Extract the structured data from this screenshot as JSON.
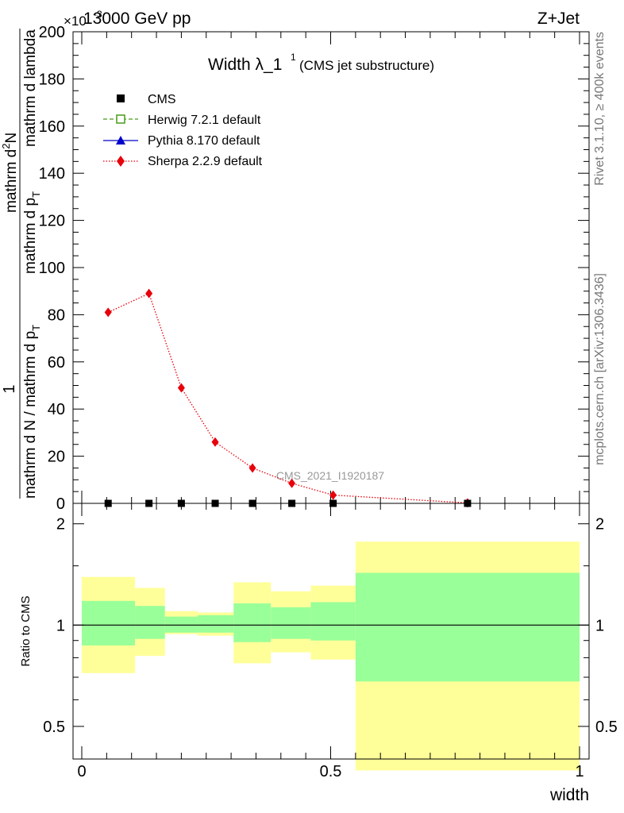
{
  "header": {
    "energy_label": "13000 GeV pp",
    "process_label": "Z+Jet",
    "y_exponent_label": "×10",
    "y_exponent": "-3"
  },
  "side_labels": {
    "rivet": "Rivet 3.1.10, ≥ 400k events",
    "mcplots": "mcplots.cern.ch [arXiv:1306.3436]"
  },
  "watermark": "CMS_2021_I1920187",
  "chart_data": [
    {
      "type": "line",
      "title_main": "Width λ_1",
      "title_sup": "1",
      "title_note": "(CMS jet substructure)",
      "ylabel_parts": {
        "one": "1",
        "denom": "mathrm d N / mathrm d p",
        "denom_sub": "T",
        "denom2": "mathrm d p",
        "denom2_sub": "T",
        "tail": "mathrm d lambda",
        "numer": "mathrm d",
        "numer_sup": "2",
        "numer_tail": "N"
      },
      "xlabel": "width",
      "xlim": [
        0,
        1
      ],
      "ylim": [
        0,
        200
      ],
      "y_ticks": [
        0,
        20,
        40,
        60,
        80,
        100,
        120,
        140,
        160,
        180,
        200
      ],
      "legend_position": "top-left",
      "legend": [
        {
          "name": "CMS",
          "marker": "square-filled",
          "color": "#000000",
          "line": "none"
        },
        {
          "name": "Herwig 7.2.1 default",
          "marker": "square-open",
          "color": "#4a9a1a",
          "line": "dashed"
        },
        {
          "name": "Pythia 8.170 default",
          "marker": "triangle",
          "color": "#0000cc",
          "line": "solid"
        },
        {
          "name": "Sherpa 2.2.9 default",
          "marker": "diamond",
          "color": "#e8000b",
          "line": "dotted"
        }
      ],
      "series": [
        {
          "name": "CMS",
          "x": [
            0.053,
            0.135,
            0.2,
            0.268,
            0.343,
            0.422,
            0.505,
            0.775
          ],
          "y": [
            0,
            0,
            0,
            0,
            0,
            0,
            0,
            0
          ]
        },
        {
          "name": "Sherpa 2.2.9 default",
          "x": [
            0.053,
            0.135,
            0.2,
            0.268,
            0.343,
            0.422,
            0.505,
            0.775
          ],
          "y": [
            81,
            89,
            49,
            26,
            15,
            8.5,
            3.5,
            0.2
          ]
        }
      ]
    },
    {
      "type": "area",
      "ylabel": "Ratio to CMS",
      "xlabel": "width",
      "xlim": [
        0,
        1
      ],
      "ylim": [
        0.4,
        2.3
      ],
      "y_ticks": [
        0.5,
        1,
        2
      ],
      "y_scale": "log",
      "reference_line": 1,
      "x_ticks": [
        0,
        0.5,
        1
      ],
      "bins": [
        {
          "x0": 0.0,
          "x1": 0.107,
          "outer": [
            0.72,
            1.39
          ],
          "inner": [
            0.87,
            1.18
          ]
        },
        {
          "x0": 0.107,
          "x1": 0.167,
          "outer": [
            0.81,
            1.29
          ],
          "inner": [
            0.91,
            1.14
          ]
        },
        {
          "x0": 0.167,
          "x1": 0.233,
          "outer": [
            0.94,
            1.1
          ],
          "inner": [
            0.95,
            1.06
          ]
        },
        {
          "x0": 0.233,
          "x1": 0.305,
          "outer": [
            0.93,
            1.09
          ],
          "inner": [
            0.95,
            1.07
          ]
        },
        {
          "x0": 0.305,
          "x1": 0.38,
          "outer": [
            0.77,
            1.34
          ],
          "inner": [
            0.89,
            1.16
          ]
        },
        {
          "x0": 0.38,
          "x1": 0.46,
          "outer": [
            0.83,
            1.26
          ],
          "inner": [
            0.91,
            1.13
          ]
        },
        {
          "x0": 0.46,
          "x1": 0.55,
          "outer": [
            0.79,
            1.31
          ],
          "inner": [
            0.9,
            1.17
          ]
        },
        {
          "x0": 0.55,
          "x1": 1.0,
          "outer": [
            0.37,
            1.77
          ],
          "inner": [
            0.68,
            1.43
          ]
        }
      ],
      "colors": {
        "outer": "#ffff99",
        "inner": "#99ff99",
        "line": "#000000"
      }
    }
  ]
}
